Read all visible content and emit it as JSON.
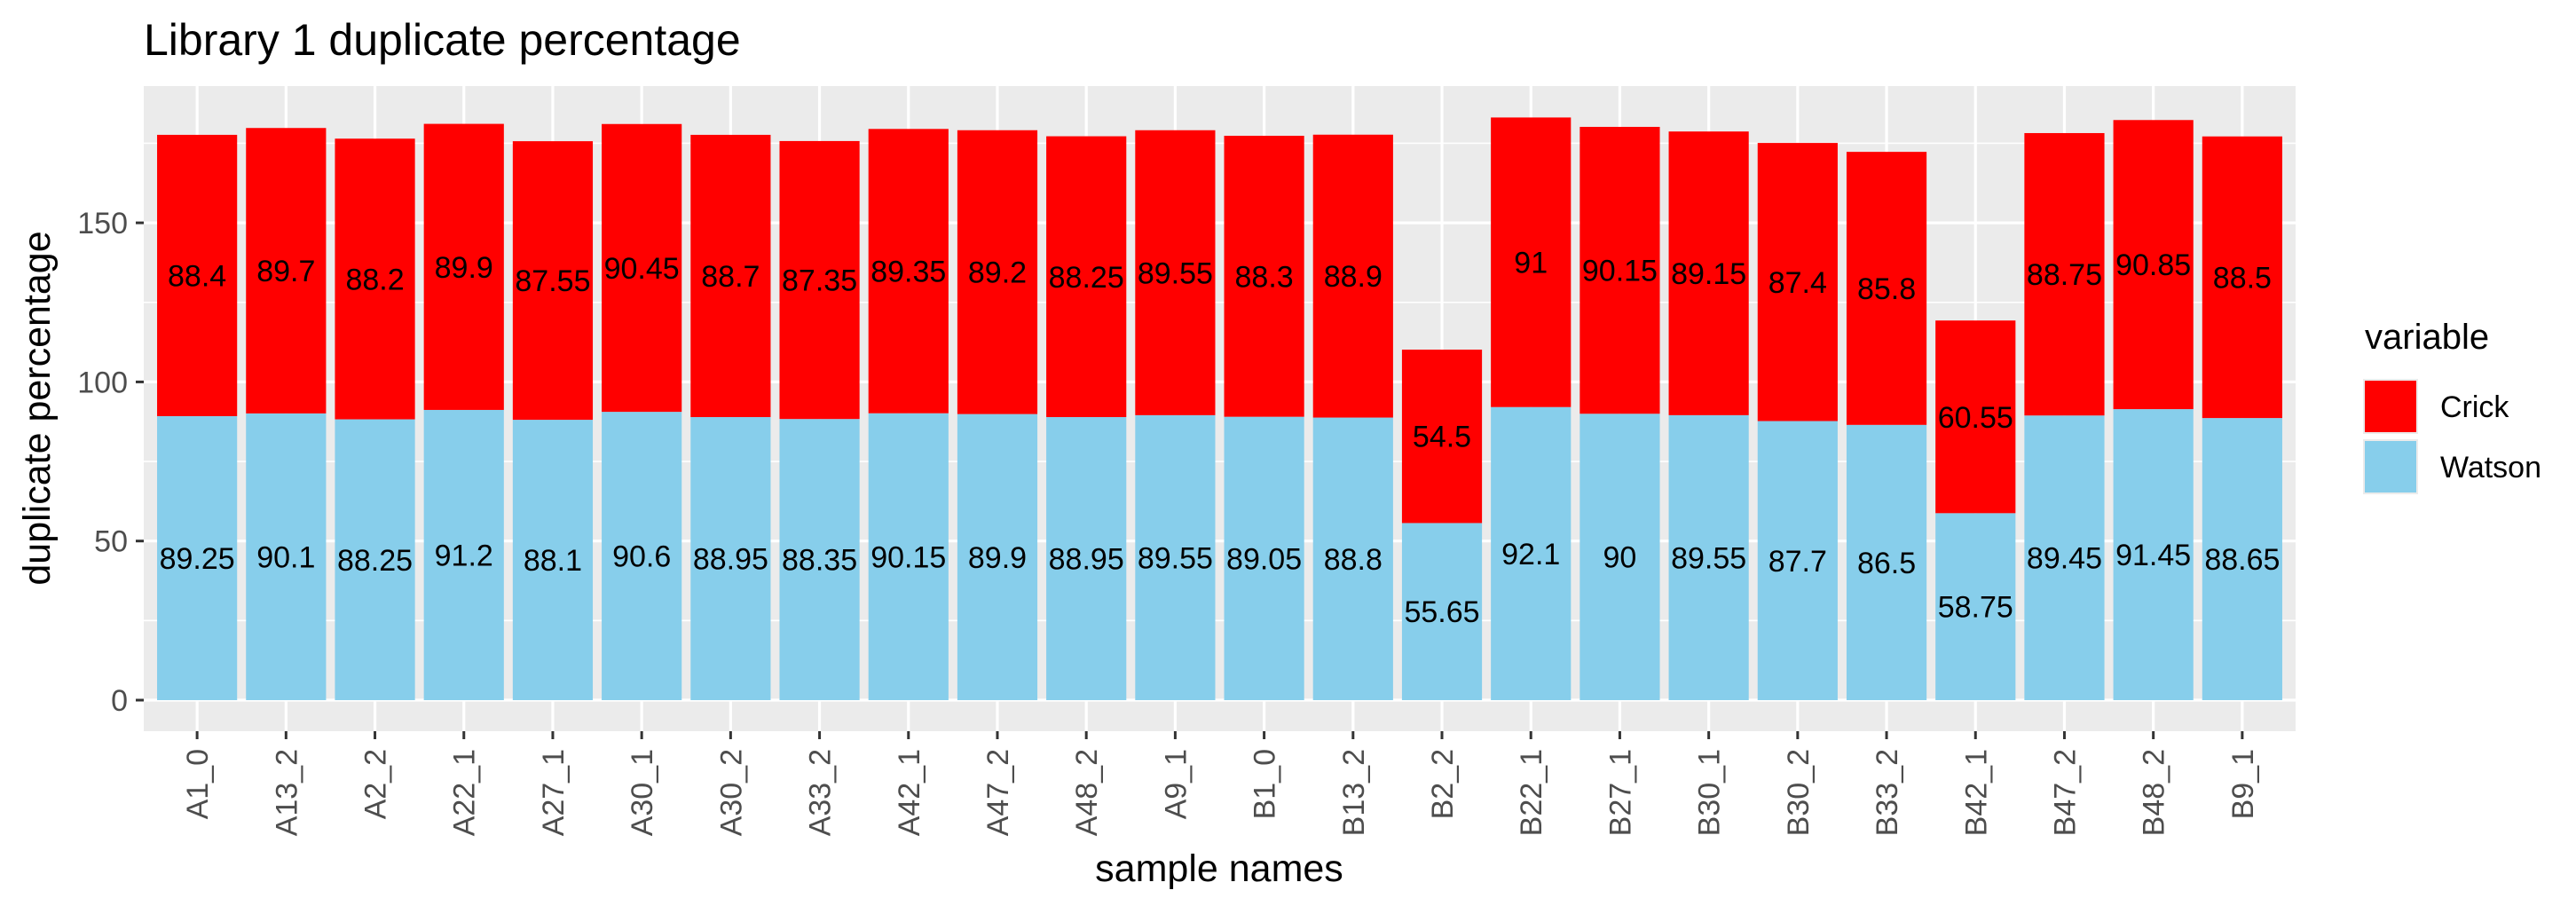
{
  "chart_data": {
    "type": "bar",
    "stacked": true,
    "title": "Library 1 duplicate percentage",
    "xlabel": "sample names",
    "ylabel": "duplicate percentage",
    "ylim": [
      0,
      193
    ],
    "yticks": [
      0,
      50,
      100,
      150
    ],
    "grid": true,
    "legend_position": "right",
    "legend_title": "variable",
    "categories": [
      "A1_0",
      "A13_2",
      "A2_2",
      "A22_1",
      "A27_1",
      "A30_1",
      "A30_2",
      "A33_2",
      "A42_1",
      "A47_2",
      "A48_2",
      "A9_1",
      "B1_0",
      "B13_2",
      "B2_2",
      "B22_1",
      "B27_1",
      "B30_1",
      "B30_2",
      "B33_2",
      "B42_1",
      "B47_2",
      "B48_2",
      "B9_1"
    ],
    "series": [
      {
        "name": "Watson",
        "color": "#87CEEB",
        "values": [
          89.25,
          90.1,
          88.25,
          91.2,
          88.1,
          90.6,
          88.95,
          88.35,
          90.15,
          89.9,
          88.95,
          89.55,
          89.05,
          88.8,
          55.65,
          92.1,
          90,
          89.55,
          87.7,
          86.5,
          58.75,
          89.45,
          91.45,
          88.65
        ]
      },
      {
        "name": "Crick",
        "color": "#FF0000",
        "values": [
          88.4,
          89.7,
          88.2,
          89.9,
          87.55,
          90.45,
          88.7,
          87.35,
          89.35,
          89.2,
          88.25,
          89.55,
          88.3,
          88.9,
          54.5,
          91,
          90.15,
          89.15,
          87.4,
          85.8,
          60.55,
          88.75,
          90.85,
          88.5
        ]
      }
    ]
  }
}
